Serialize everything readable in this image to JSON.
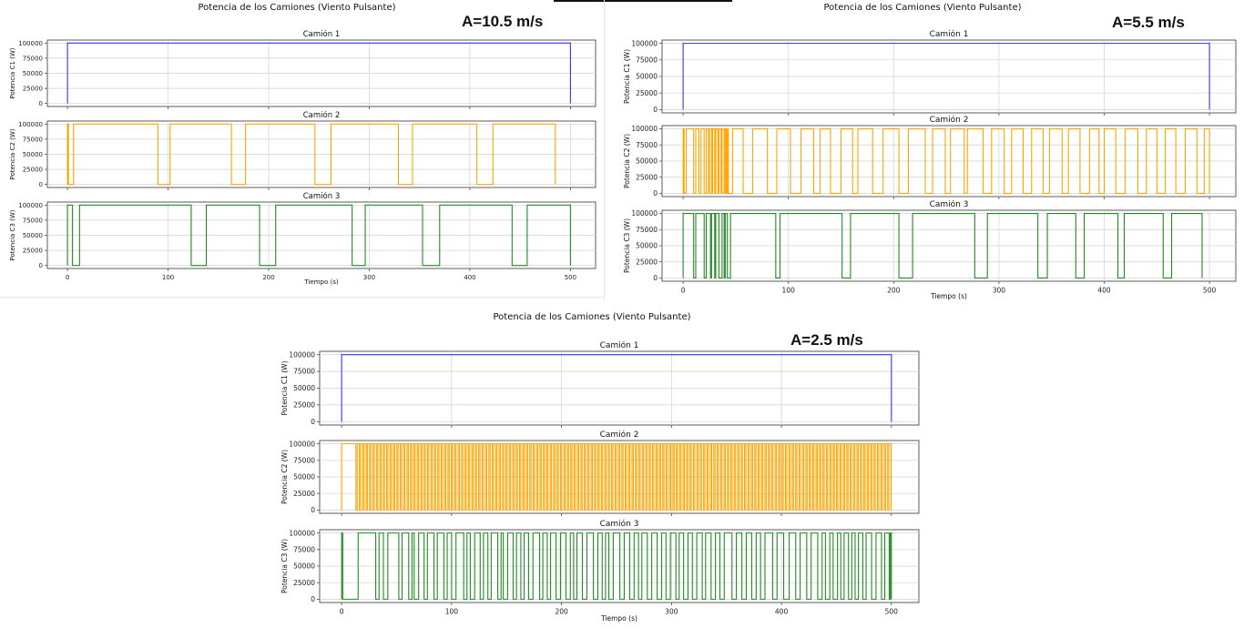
{
  "figures": [
    {
      "title": "Potencia de los Camiones (Viento Pulsante)",
      "amplitude_label": "A=10.5 m/s",
      "xlabel": "Tiempo (s)",
      "x_ticks": [
        "0",
        "100",
        "200",
        "300",
        "400",
        "500"
      ]
    },
    {
      "title": "Potencia de los Camiones (Viento Pulsante)",
      "amplitude_label": "A=5.5 m/s",
      "xlabel": "Tiempo (s)",
      "x_ticks": [
        "0",
        "100",
        "200",
        "300",
        "400",
        "500"
      ]
    },
    {
      "title": "Potencia de los Camiones (Viento Pulsante)",
      "amplitude_label": "A=2.5 m/s",
      "xlabel": "Tiempo (s)",
      "x_ticks": [
        "0",
        "100",
        "200",
        "300",
        "400",
        "500"
      ]
    }
  ],
  "y_ticks": [
    "0",
    "25000",
    "50000",
    "75000",
    "100000"
  ],
  "colors": {
    "camion1": "#3333ff",
    "camion2": "#ffa500",
    "camion3": "#228b22",
    "grid": "#d0d0d0",
    "axis": "#333333"
  },
  "chart_data": [
    {
      "type": "line",
      "title": "Potencia de los Camiones (Viento Pulsante)",
      "annotation": "A=10.5 m/s",
      "xlabel": "Tiempo (s)",
      "xlim": [
        -20,
        525
      ],
      "ylim": [
        -5000,
        105000
      ],
      "grid": true,
      "subplots": [
        {
          "title": "Camión 1",
          "ylabel": "Potencia C1 (W)",
          "color": "#3333ff",
          "on_intervals": [
            [
              0,
              500
            ]
          ]
        },
        {
          "title": "Camión 2",
          "ylabel": "Potencia C2 (W)",
          "color": "#ffa500",
          "on_intervals": [
            [
              0,
              1
            ],
            [
              6,
              90
            ],
            [
              102,
              163
            ],
            [
              177,
              246
            ],
            [
              262,
              329
            ],
            [
              343,
              407
            ],
            [
              423,
              485
            ]
          ]
        },
        {
          "title": "Camión 3",
          "ylabel": "Potencia C3 (W)",
          "color": "#228b22",
          "on_intervals": [
            [
              0,
              5
            ],
            [
              12,
              123
            ],
            [
              138,
              191
            ],
            [
              207,
              283
            ],
            [
              296,
              353
            ],
            [
              370,
              442
            ],
            [
              457,
              500
            ]
          ]
        }
      ]
    },
    {
      "type": "line",
      "title": "Potencia de los Camiones (Viento Pulsante)",
      "annotation": "A=5.5 m/s",
      "xlabel": "Tiempo (s)",
      "xlim": [
        -20,
        525
      ],
      "ylim": [
        -5000,
        105000
      ],
      "grid": true,
      "subplots": [
        {
          "title": "Camión 1",
          "ylabel": "Potencia C1 (W)",
          "color": "#3333ff",
          "on_intervals": [
            [
              0,
              500
            ]
          ]
        },
        {
          "title": "Camión 2",
          "ylabel": "Potencia C2 (W)",
          "color": "#ffa500",
          "on_intervals": [
            [
              0,
              1
            ],
            [
              3,
              10
            ],
            [
              12,
              15
            ],
            [
              17,
              20
            ],
            [
              22,
              24
            ],
            [
              25,
              27
            ],
            [
              28,
              30
            ],
            [
              31,
              33
            ],
            [
              34,
              36
            ],
            [
              37,
              39
            ],
            [
              40,
              41
            ],
            [
              42,
              43
            ],
            [
              47,
              57
            ],
            [
              66,
              80
            ],
            [
              89,
              102
            ],
            [
              112,
              124
            ],
            [
              130,
              140
            ],
            [
              150,
              161
            ],
            [
              166,
              180
            ],
            [
              190,
              205
            ],
            [
              214,
              230
            ],
            [
              237,
              249
            ],
            [
              254,
              267
            ],
            [
              270,
              285
            ],
            [
              293,
              305
            ],
            [
              312,
              323
            ],
            [
              331,
              342
            ],
            [
              348,
              360
            ],
            [
              366,
              377
            ],
            [
              386,
              395
            ],
            [
              400,
              411
            ],
            [
              420,
              432
            ],
            [
              440,
              450
            ],
            [
              458,
              468
            ],
            [
              477,
              488
            ],
            [
              495,
              500
            ]
          ]
        },
        {
          "title": "Camión 3",
          "ylabel": "Potencia C3 (W)",
          "color": "#228b22",
          "on_intervals": [
            [
              0,
              10
            ],
            [
              12,
              20
            ],
            [
              22,
              26
            ],
            [
              27,
              30
            ],
            [
              31,
              34
            ],
            [
              37,
              39
            ],
            [
              40,
              42
            ],
            [
              45,
              88
            ],
            [
              92,
              151
            ],
            [
              159,
              205
            ],
            [
              218,
              277
            ],
            [
              289,
              337
            ],
            [
              346,
              373
            ],
            [
              381,
              413
            ],
            [
              419,
              456
            ],
            [
              464,
              493
            ]
          ]
        }
      ]
    },
    {
      "type": "line",
      "title": "Potencia de los Camiones (Viento Pulsante)",
      "annotation": "A=2.5 m/s",
      "xlabel": "Tiempo (s)",
      "xlim": [
        -20,
        525
      ],
      "ylim": [
        -5000,
        105000
      ],
      "grid": true,
      "subplots": [
        {
          "title": "Camión 1",
          "ylabel": "Potencia C1 (W)",
          "color": "#3333ff",
          "on_intervals": [
            [
              0,
              500
            ]
          ]
        },
        {
          "title": "Camión 2",
          "ylabel": "Potencia C2 (W)",
          "color": "#ffa500",
          "pulse_train": {
            "start": 0,
            "end": 500,
            "first_on_end": 13,
            "period": 3.1,
            "duty": 0.62
          }
        },
        {
          "title": "Camión 3",
          "ylabel": "Potencia C3 (W)",
          "color": "#228b22",
          "on_intervals": [
            [
              0,
              1
            ],
            [
              15,
              31
            ],
            [
              34,
              38
            ],
            [
              42,
              52
            ],
            [
              55,
              61
            ],
            [
              64,
              66
            ],
            [
              70,
              75
            ],
            [
              78,
              84
            ],
            [
              87,
              93
            ],
            [
              96,
              100
            ],
            [
              104,
              111
            ],
            [
              114,
              117
            ],
            [
              121,
              126
            ],
            [
              129,
              133
            ],
            [
              136,
              142
            ],
            [
              145,
              147
            ],
            [
              151,
              156
            ],
            [
              159,
              163
            ],
            [
              166,
              170
            ],
            [
              174,
              180
            ],
            [
              183,
              187
            ],
            [
              190,
              195
            ],
            [
              199,
              204
            ],
            [
              208,
              211
            ],
            [
              214,
              219
            ],
            [
              223,
              229
            ],
            [
              233,
              237
            ],
            [
              240,
              243
            ],
            [
              247,
              253
            ],
            [
              257,
              262
            ],
            [
              266,
              270
            ],
            [
              273,
              278
            ],
            [
              282,
              287
            ],
            [
              291,
              295
            ],
            [
              299,
              304
            ],
            [
              307,
              311
            ],
            [
              315,
              319
            ],
            [
              323,
              328
            ],
            [
              331,
              336
            ],
            [
              340,
              344
            ],
            [
              348,
              355
            ],
            [
              359,
              364
            ],
            [
              368,
              373
            ],
            [
              377,
              381
            ],
            [
              385,
              392
            ],
            [
              396,
              402
            ],
            [
              407,
              413
            ],
            [
              417,
              423
            ],
            [
              427,
              433
            ],
            [
              437,
              440
            ],
            [
              444,
              447
            ],
            [
              451,
              454
            ],
            [
              457,
              461
            ],
            [
              464,
              467
            ],
            [
              470,
              474
            ],
            [
              477,
              482
            ],
            [
              486,
              491
            ],
            [
              494,
              498
            ],
            [
              499,
              500
            ]
          ]
        }
      ]
    }
  ]
}
